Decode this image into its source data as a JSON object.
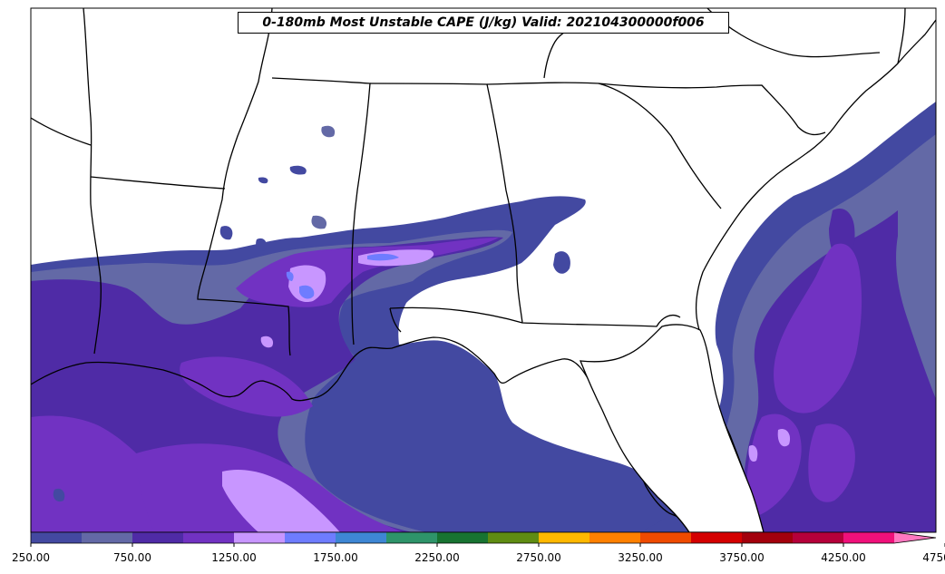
{
  "title": "0-180mb Most Unstable CAPE (J/kg) Valid: 202104300000f006",
  "colorbar": {
    "levels": [
      250,
      500,
      750,
      1000,
      1250,
      1500,
      1750,
      2000,
      2250,
      2500,
      2750,
      3000,
      3250,
      3500,
      3750,
      4000,
      4250,
      4500,
      4750
    ],
    "colors": [
      "#4349a1",
      "#6369a6",
      "#4f2ba6",
      "#7132c2",
      "#c896ff",
      "#6e7cff",
      "#3e86d4",
      "#2e946a",
      "#177331",
      "#5f8c12",
      "#ffb800",
      "#ff8000",
      "#ef4a00",
      "#d40000",
      "#a3000c",
      "#b5003a",
      "#f0107a",
      "#ff78c0"
    ],
    "tick_labels": [
      "250.00",
      "750.00",
      "1250.00",
      "1750.00",
      "2250.00",
      "2750.00",
      "3250.00",
      "3750.00",
      "4250.00",
      "4750.00"
    ],
    "extend": "max"
  },
  "map": {
    "region": "Southeastern United States and Gulf of Mexico",
    "land_color": "#ffffff",
    "border_color": "#000000"
  }
}
